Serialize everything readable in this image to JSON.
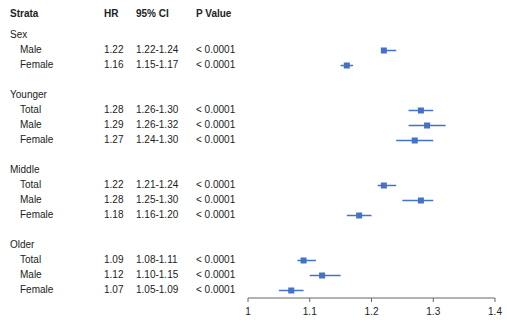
{
  "chart_data": {
    "type": "forest",
    "columns": [
      "Strata",
      "HR",
      "95% CI",
      "P Value"
    ],
    "categories": [
      "Sex",
      "Male",
      "Female",
      null,
      "Younger",
      "Total",
      "Male",
      "Female",
      null,
      "Middle",
      "Total",
      "Male",
      "Female",
      null,
      "Older",
      "Total",
      "Male",
      "Female"
    ],
    "indent": [
      0,
      1,
      1,
      0,
      0,
      1,
      1,
      1,
      0,
      0,
      1,
      1,
      1,
      0,
      0,
      1,
      1,
      1
    ],
    "values": [
      null,
      1.22,
      1.16,
      null,
      null,
      1.28,
      1.29,
      1.27,
      null,
      null,
      1.22,
      1.28,
      1.18,
      null,
      null,
      1.09,
      1.12,
      1.07
    ],
    "value_labels": [
      null,
      "1.22",
      "1.16",
      null,
      null,
      "1.28",
      "1.29",
      "1.27",
      null,
      null,
      "1.22",
      "1.28",
      "1.18",
      null,
      null,
      "1.09",
      "1.12",
      "1.07"
    ],
    "ci_low": [
      null,
      1.22,
      1.15,
      null,
      null,
      1.26,
      1.26,
      1.24,
      null,
      null,
      1.21,
      1.25,
      1.16,
      null,
      null,
      1.08,
      1.1,
      1.05
    ],
    "ci_high": [
      null,
      1.24,
      1.17,
      null,
      null,
      1.3,
      1.32,
      1.3,
      null,
      null,
      1.24,
      1.3,
      1.2,
      null,
      null,
      1.11,
      1.15,
      1.09
    ],
    "ci_labels": [
      null,
      "1.22-1.24",
      "1.15-1.17",
      null,
      null,
      "1.26-1.30",
      "1.26-1.32",
      "1.24-1.30",
      null,
      null,
      "1.21-1.24",
      "1.25-1.30",
      "1.16-1.20",
      null,
      null,
      "1.08-1.11",
      "1.10-1.15",
      "1.05-1.09"
    ],
    "p_values": [
      null,
      "< 0.0001",
      "< 0.0001",
      null,
      null,
      "< 0.0001",
      "< 0.0001",
      "< 0.0001",
      null,
      null,
      "< 0.0001",
      "< 0.0001",
      "< 0.0001",
      null,
      null,
      "< 0.0001",
      "< 0.0001",
      "< 0.0001"
    ],
    "xlim": [
      1.0,
      1.4
    ],
    "xticks": [
      1,
      1.1,
      1.2,
      1.3,
      1.4
    ],
    "color": "#4472C4",
    "grid": false
  }
}
